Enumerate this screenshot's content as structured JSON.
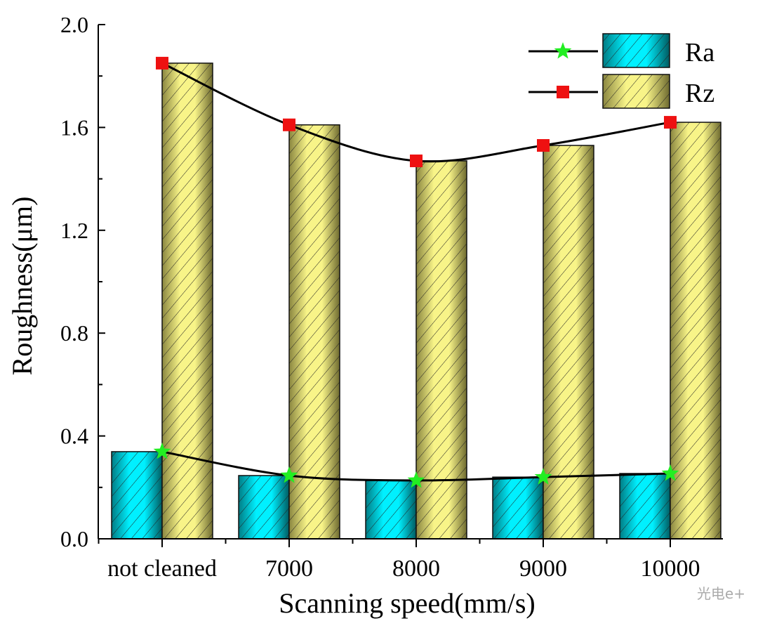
{
  "chart_data": {
    "type": "bar",
    "title": "",
    "xlabel": "Scanning speed(mm/s)",
    "ylabel": "Roughness(μm)",
    "categories": [
      "not cleaned",
      "7000",
      "8000",
      "9000",
      "10000"
    ],
    "ylim": [
      0,
      2.0
    ],
    "yticks": [
      "0.0",
      "0.4",
      "0.8",
      "1.2",
      "1.6",
      "2.0"
    ],
    "legend_position": "top-right",
    "series": [
      {
        "name": "Ra",
        "values": [
          0.339,
          0.246,
          0.227,
          0.24,
          0.254
        ],
        "bar_color": "#00e5f0",
        "marker": "star",
        "marker_color": "#22ee22"
      },
      {
        "name": "Rz",
        "values": [
          1.85,
          1.61,
          1.47,
          1.53,
          1.62
        ],
        "bar_color": "#f0ec80",
        "marker": "square",
        "marker_color": "#ee1111"
      }
    ]
  },
  "watermark": "光电e+"
}
